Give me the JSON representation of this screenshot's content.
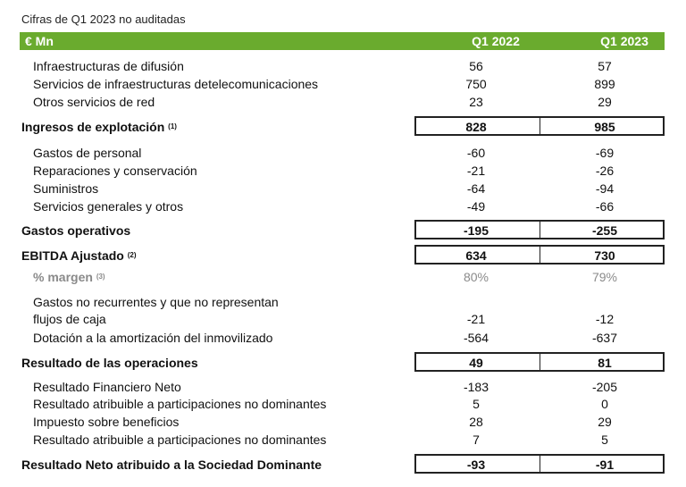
{
  "note": "Cifras de Q1 2023 no auditadas",
  "header": {
    "label": "€ Mn",
    "col1": "Q1 2022",
    "col2": "Q1 2023"
  },
  "rows": [
    {
      "label": "Infraestructuras de difusión",
      "q1_2022": "56",
      "q1_2023": "57"
    },
    {
      "label": "Servicios de infraestructuras detelecomunicaciones",
      "q1_2022": "750",
      "q1_2023": "899"
    },
    {
      "label": "Otros servicios de red",
      "q1_2022": "23",
      "q1_2023": "29"
    },
    {
      "label": "Ingresos de explotación",
      "sup": "(1)",
      "q1_2022": "828",
      "q1_2023": "985"
    },
    {
      "label": "Gastos de personal",
      "q1_2022": "-60",
      "q1_2023": "-69"
    },
    {
      "label": "Reparaciones y conservación",
      "q1_2022": "-21",
      "q1_2023": "-26"
    },
    {
      "label": "Suministros",
      "q1_2022": "-64",
      "q1_2023": "-94"
    },
    {
      "label": "Servicios generales y otros",
      "q1_2022": "-49",
      "q1_2023": "-66"
    },
    {
      "label": "Gastos operativos",
      "q1_2022": "-195",
      "q1_2023": "-255"
    },
    {
      "label": "EBITDA Ajustado",
      "sup": "(2)",
      "q1_2022": "634",
      "q1_2023": "730"
    },
    {
      "label": "% margen",
      "sup": "(3)",
      "q1_2022": "80%",
      "q1_2023": "79%"
    },
    {
      "label": "Gastos no recurrentes y que no representan"
    },
    {
      "label": "flujos de caja",
      "q1_2022": "-21",
      "q1_2023": "-12"
    },
    {
      "label": "Dotación a la amortización del inmovilizado",
      "q1_2022": "-564",
      "q1_2023": "-637"
    },
    {
      "label": "Resultado de las operaciones",
      "q1_2022": "49",
      "q1_2023": "81"
    },
    {
      "label": "Resultado Financiero Neto",
      "q1_2022": "-183",
      "q1_2023": "-205"
    },
    {
      "label": "Resultado atribuible a participaciones no dominantes",
      "q1_2022": "5",
      "q1_2023": "0"
    },
    {
      "label": "Impuesto sobre beneficios",
      "q1_2022": "28",
      "q1_2023": "29"
    },
    {
      "label": "Resultado atribuible a participaciones no dominantes",
      "q1_2022": "7",
      "q1_2023": "5"
    },
    {
      "label": "Resultado Neto atribuido a la Sociedad Dominante",
      "q1_2022": "-93",
      "q1_2023": "-91"
    }
  ]
}
